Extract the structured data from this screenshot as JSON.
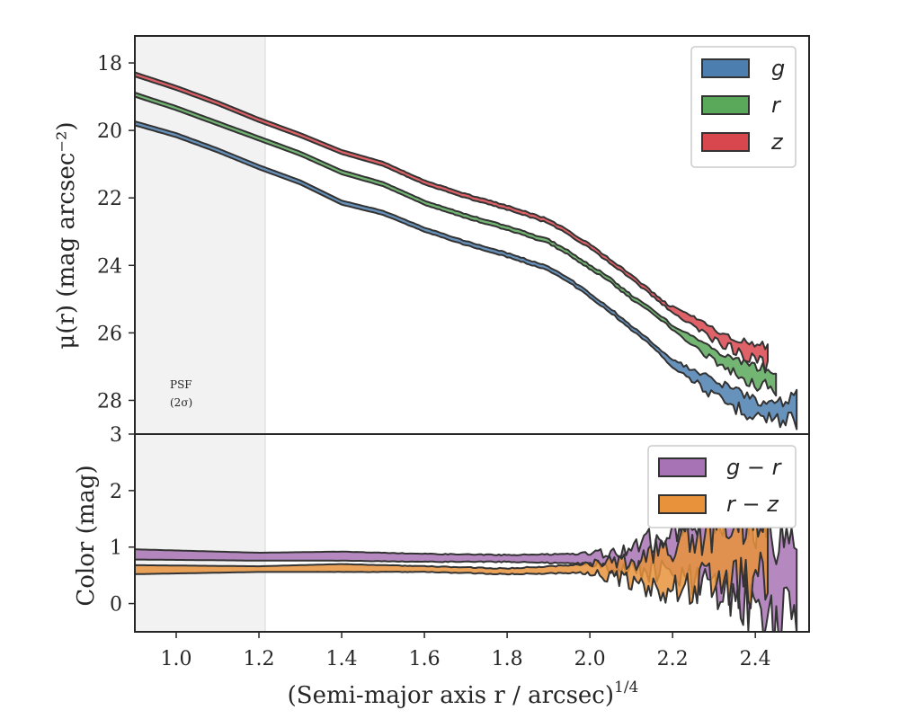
{
  "chart_data": [
    {
      "type": "area",
      "panel": "top",
      "ylabel": "μ(r) (mag arcsec⁻²)",
      "xlim": [
        0.9,
        2.53
      ],
      "ylim": [
        29.0,
        17.2
      ],
      "y_inverted": true,
      "yticks": [
        18,
        20,
        22,
        24,
        26,
        28
      ],
      "yticklabels": [
        "18",
        "20",
        "22",
        "24",
        "26",
        "28"
      ],
      "psf_region": {
        "x_start": 0.9,
        "x_end": 1.215,
        "label_line1": "PSF",
        "label_line2": "(2σ)"
      },
      "legend_position": "top-right",
      "series": [
        {
          "name": "g",
          "color": "#4c7fb0",
          "points": [
            [
              0.9,
              19.85
            ],
            [
              1.0,
              20.2
            ],
            [
              1.1,
              20.65
            ],
            [
              1.2,
              21.15
            ],
            [
              1.3,
              21.6
            ],
            [
              1.4,
              22.2
            ],
            [
              1.5,
              22.5
            ],
            [
              1.6,
              23.0
            ],
            [
              1.7,
              23.4
            ],
            [
              1.8,
              23.75
            ],
            [
              1.9,
              24.15
            ],
            [
              1.95,
              24.5
            ],
            [
              2.0,
              24.95
            ],
            [
              2.05,
              25.4
            ],
            [
              2.1,
              25.9
            ],
            [
              2.15,
              26.4
            ],
            [
              2.2,
              27.0
            ],
            [
              2.25,
              27.4
            ],
            [
              2.3,
              27.9
            ],
            [
              2.35,
              28.2
            ],
            [
              2.4,
              28.4
            ],
            [
              2.45,
              28.6
            ],
            [
              2.5,
              28.5
            ]
          ],
          "upper": [
            [
              2.15,
              26.3
            ],
            [
              2.2,
              26.8
            ],
            [
              2.25,
              27.1
            ],
            [
              2.3,
              27.4
            ],
            [
              2.35,
              27.7
            ],
            [
              2.4,
              28.0
            ],
            [
              2.45,
              28.1
            ],
            [
              2.5,
              27.9
            ]
          ]
        },
        {
          "name": "r",
          "color": "#5aa85a",
          "points": [
            [
              0.9,
              19.0
            ],
            [
              1.0,
              19.4
            ],
            [
              1.1,
              19.85
            ],
            [
              1.2,
              20.3
            ],
            [
              1.3,
              20.75
            ],
            [
              1.4,
              21.3
            ],
            [
              1.5,
              21.65
            ],
            [
              1.6,
              22.2
            ],
            [
              1.7,
              22.6
            ],
            [
              1.8,
              22.95
            ],
            [
              1.9,
              23.35
            ],
            [
              1.95,
              23.7
            ],
            [
              2.0,
              24.1
            ],
            [
              2.05,
              24.5
            ],
            [
              2.1,
              25.0
            ],
            [
              2.15,
              25.4
            ],
            [
              2.2,
              25.9
            ],
            [
              2.25,
              26.4
            ],
            [
              2.3,
              26.8
            ],
            [
              2.35,
              27.2
            ],
            [
              2.4,
              27.5
            ],
            [
              2.45,
              27.7
            ]
          ],
          "upper": [
            [
              2.2,
              25.8
            ],
            [
              2.25,
              26.1
            ],
            [
              2.3,
              26.5
            ],
            [
              2.35,
              26.8
            ],
            [
              2.4,
              27.0
            ],
            [
              2.45,
              27.1
            ],
            [
              2.48,
              27.4
            ]
          ]
        },
        {
          "name": "z",
          "color": "#d9474e",
          "points": [
            [
              0.9,
              18.4
            ],
            [
              1.0,
              18.8
            ],
            [
              1.1,
              19.25
            ],
            [
              1.2,
              19.75
            ],
            [
              1.3,
              20.2
            ],
            [
              1.4,
              20.7
            ],
            [
              1.5,
              21.05
            ],
            [
              1.6,
              21.6
            ],
            [
              1.7,
              22.0
            ],
            [
              1.8,
              22.35
            ],
            [
              1.9,
              22.75
            ],
            [
              1.95,
              23.1
            ],
            [
              2.0,
              23.5
            ],
            [
              2.05,
              23.95
            ],
            [
              2.1,
              24.4
            ],
            [
              2.15,
              24.9
            ],
            [
              2.2,
              25.4
            ],
            [
              2.25,
              25.8
            ],
            [
              2.3,
              26.2
            ],
            [
              2.35,
              26.5
            ],
            [
              2.4,
              26.8
            ],
            [
              2.43,
              27.0
            ]
          ],
          "upper": [
            [
              2.2,
              25.2
            ],
            [
              2.25,
              25.5
            ],
            [
              2.3,
              25.9
            ],
            [
              2.35,
              26.2
            ],
            [
              2.4,
              26.3
            ],
            [
              2.43,
              26.4
            ]
          ]
        }
      ]
    },
    {
      "type": "area",
      "panel": "bottom",
      "xlabel": "(Semi-major axis r / arcsec)",
      "xlabel_superscript": "1/4",
      "ylabel": "Color (mag)",
      "xlim": [
        0.9,
        2.53
      ],
      "ylim": [
        -0.5,
        3.0
      ],
      "xticks": [
        1.0,
        1.2,
        1.4,
        1.6,
        1.8,
        2.0,
        2.2,
        2.4
      ],
      "xticklabels": [
        "1.0",
        "1.2",
        "1.4",
        "1.6",
        "1.8",
        "2.0",
        "2.2",
        "2.4"
      ],
      "yticks": [
        0,
        1,
        2,
        3
      ],
      "yticklabels": [
        "0",
        "1",
        "2",
        "3"
      ],
      "legend_position": "top-right",
      "series": [
        {
          "name": "g − r",
          "color": "#a873b4",
          "lower": [
            [
              0.9,
              0.78
            ],
            [
              1.2,
              0.76
            ],
            [
              1.4,
              0.76
            ],
            [
              1.6,
              0.74
            ],
            [
              1.8,
              0.74
            ],
            [
              2.0,
              0.7
            ],
            [
              2.1,
              0.6
            ],
            [
              2.2,
              0.5
            ],
            [
              2.3,
              0.2
            ],
            [
              2.4,
              0.0
            ],
            [
              2.45,
              -0.3
            ],
            [
              2.5,
              -0.2
            ]
          ],
          "upper": [
            [
              0.9,
              0.96
            ],
            [
              1.2,
              0.9
            ],
            [
              1.4,
              0.92
            ],
            [
              1.6,
              0.88
            ],
            [
              1.8,
              0.86
            ],
            [
              2.0,
              0.88
            ],
            [
              2.1,
              0.95
            ],
            [
              2.2,
              1.3
            ],
            [
              2.3,
              1.6
            ],
            [
              2.4,
              1.5
            ],
            [
              2.45,
              1.2
            ],
            [
              2.5,
              1.3
            ]
          ]
        },
        {
          "name": "r − z",
          "color": "#e8933c",
          "lower": [
            [
              0.9,
              0.52
            ],
            [
              1.2,
              0.56
            ],
            [
              1.4,
              0.56
            ],
            [
              1.6,
              0.56
            ],
            [
              1.8,
              0.52
            ],
            [
              2.0,
              0.55
            ],
            [
              2.1,
              0.4
            ],
            [
              2.2,
              0.2
            ],
            [
              2.3,
              0.4
            ],
            [
              2.4,
              0.3
            ],
            [
              2.43,
              0.5
            ]
          ],
          "upper": [
            [
              0.9,
              0.68
            ],
            [
              1.2,
              0.66
            ],
            [
              1.4,
              0.7
            ],
            [
              1.6,
              0.66
            ],
            [
              1.8,
              0.62
            ],
            [
              2.0,
              0.7
            ],
            [
              2.1,
              0.75
            ],
            [
              2.2,
              1.0
            ],
            [
              2.3,
              1.3
            ],
            [
              2.4,
              1.5
            ],
            [
              2.43,
              2.0
            ]
          ]
        }
      ]
    }
  ]
}
